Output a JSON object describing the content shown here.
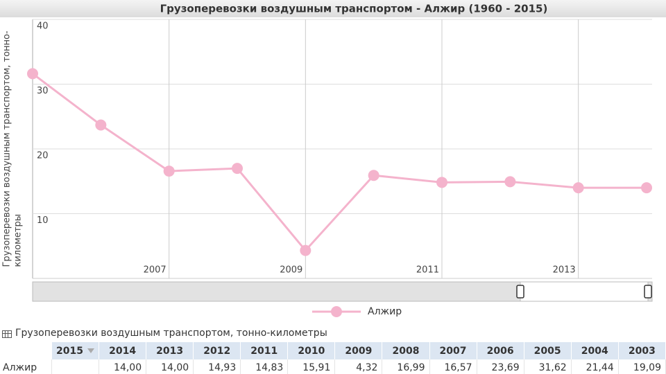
{
  "chart_data": {
    "type": "line",
    "title": "Грузоперевозки воздушным транспортом - Алжир (1960 - 2015)",
    "y_label": "Грузоперевозки воздушным транспортом, тонно-километры",
    "x": [
      2005,
      2006,
      2007,
      2008,
      2009,
      2010,
      2011,
      2012,
      2013,
      2014
    ],
    "series": [
      {
        "name": "Алжир",
        "color": "#f4b3cc",
        "values": [
          31.62,
          23.69,
          16.57,
          16.99,
          4.32,
          15.91,
          14.83,
          14.93,
          14.0,
          14.0
        ]
      }
    ],
    "xlim": [
      2005,
      2014
    ],
    "xticks": [
      2007,
      2009,
      2011,
      2013
    ],
    "ylim": [
      0,
      40
    ],
    "yticks": [
      10,
      20,
      30,
      40
    ],
    "grid": true,
    "legend": "bottom"
  },
  "table": {
    "title": "Грузоперевозки воздушным транспортом, тонно-километры",
    "columns": [
      "2015",
      "2014",
      "2013",
      "2012",
      "2011",
      "2010",
      "2009",
      "2008",
      "2007",
      "2006",
      "2005",
      "2004",
      "2003"
    ],
    "rows": [
      {
        "label": "Алжир",
        "cells": [
          null,
          "14,00",
          "14,00",
          "14,93",
          "14,83",
          "15,91",
          "4,32",
          "16,99",
          "16,57",
          "23,69",
          "31,62",
          "21,44",
          "19,09"
        ]
      }
    ]
  }
}
